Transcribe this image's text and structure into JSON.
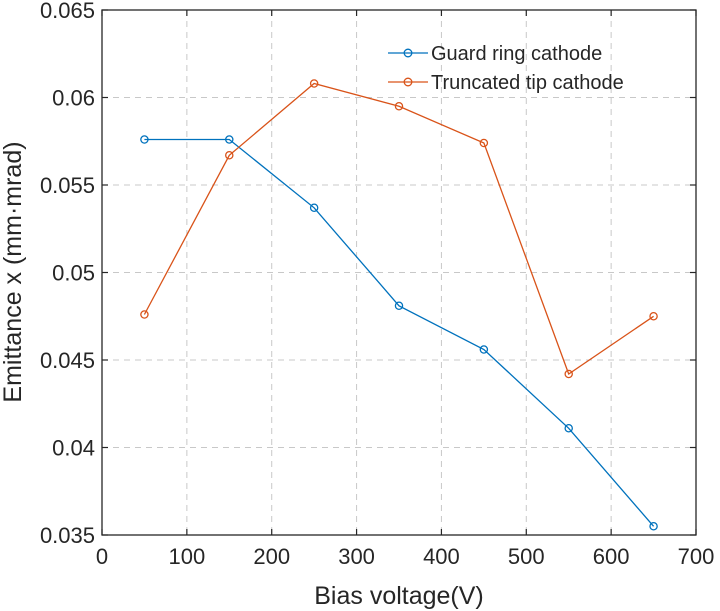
{
  "chart_data": {
    "type": "line",
    "title": "",
    "xlabel": "Bias voltage(V)",
    "ylabel": "Emittance x (mm·mrad)",
    "xlim": [
      0,
      700
    ],
    "ylim": [
      0.035,
      0.065
    ],
    "x_ticks": [
      0,
      100,
      200,
      300,
      400,
      500,
      600,
      700
    ],
    "x_tick_labels": [
      "0",
      "100",
      "200",
      "300",
      "400",
      "500",
      "600",
      "700"
    ],
    "y_ticks": [
      0.035,
      0.04,
      0.045,
      0.05,
      0.055,
      0.06,
      0.065
    ],
    "y_tick_labels": [
      "0.035",
      "0.04",
      "0.045",
      "0.05",
      "0.055",
      "0.06",
      "0.065"
    ],
    "grid": true,
    "legend_position": "top-right",
    "x": [
      50,
      150,
      250,
      350,
      450,
      550,
      650
    ],
    "series": [
      {
        "name": "Guard ring cathode",
        "color": "#0072BD",
        "values": [
          0.0576,
          0.0576,
          0.0537,
          0.0481,
          0.0456,
          0.0411,
          0.0355
        ]
      },
      {
        "name": "Truncated tip cathode",
        "color": "#D95319",
        "values": [
          0.0476,
          0.0567,
          0.0608,
          0.0595,
          0.0574,
          0.0442,
          0.0475
        ]
      }
    ]
  }
}
